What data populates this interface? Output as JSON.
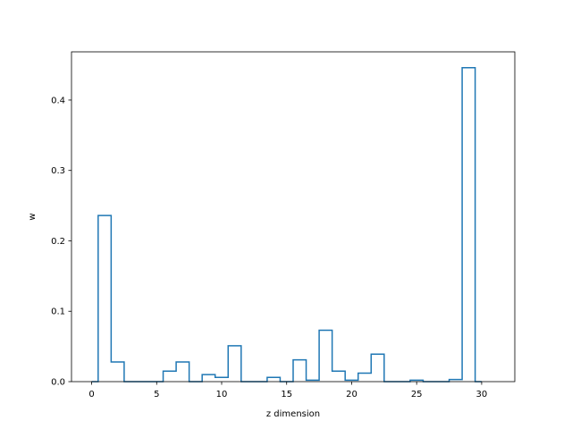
{
  "chart_data": {
    "type": "step",
    "title": "",
    "xlabel": "z dimension",
    "ylabel": "w",
    "xlim": [
      -1.55,
      32.55
    ],
    "ylim": [
      0,
      0.4685
    ],
    "xticks": [
      0,
      5,
      10,
      15,
      20,
      25,
      30
    ],
    "yticks": [
      0.0,
      0.1,
      0.2,
      0.3,
      0.4
    ],
    "xtick_labels": [
      "0",
      "5",
      "10",
      "15",
      "20",
      "25",
      "30"
    ],
    "ytick_labels": [
      "0.0",
      "0.1",
      "0.2",
      "0.3",
      "0.4"
    ],
    "grid": false,
    "line_color": "#1f77b4",
    "x": [
      0,
      1,
      2,
      3,
      4,
      5,
      6,
      7,
      8,
      9,
      10,
      11,
      12,
      13,
      14,
      15,
      16,
      17,
      18,
      19,
      20,
      21,
      22,
      23,
      24,
      25,
      26,
      27,
      28,
      29,
      30
    ],
    "values": [
      0.0,
      0.236,
      0.028,
      0.0,
      0.0,
      0.0,
      0.015,
      0.028,
      0.0,
      0.01,
      0.006,
      0.051,
      0.0,
      0.0,
      0.006,
      0.0,
      0.031,
      0.002,
      0.073,
      0.015,
      0.002,
      0.012,
      0.039,
      0.0,
      0.0,
      0.002,
      0.0,
      0.0,
      0.003,
      0.446,
      0.0
    ]
  }
}
